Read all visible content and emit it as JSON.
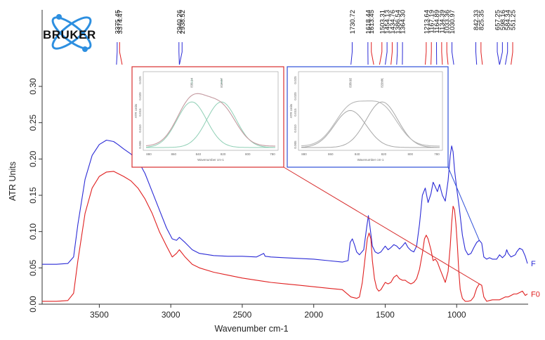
{
  "logo": {
    "text": "BRUKER"
  },
  "chart_data": {
    "type": "line",
    "xlabel": "Wavenumber cm-1",
    "ylabel": "ATR Units",
    "xlim": [
      3900,
      500
    ],
    "ylim": [
      0,
      0.33
    ],
    "x_reversed": true,
    "grid": false,
    "xticks": [
      3500,
      3000,
      2500,
      2000,
      1500,
      1000
    ],
    "yticks": [
      0.0,
      0.05,
      0.1,
      0.15,
      0.2,
      0.25,
      0.3
    ],
    "ytick_labels": [
      "0.00",
      "0.05",
      "0.10",
      "0.15",
      "0.20",
      "0.25",
      "0.30"
    ],
    "series": [
      {
        "name": "F",
        "color": "#2b2bd6",
        "x": [
          3900,
          3800,
          3720,
          3680,
          3650,
          3600,
          3550,
          3500,
          3450,
          3400,
          3370,
          3330,
          3280,
          3230,
          3180,
          3130,
          3080,
          3030,
          2990,
          2960,
          2940,
          2900,
          2850,
          2800,
          2700,
          2600,
          2500,
          2400,
          2350,
          2340,
          2300,
          2200,
          2100,
          2000,
          1900,
          1800,
          1760,
          1745,
          1730,
          1715,
          1700,
          1680,
          1650,
          1630,
          1618,
          1610,
          1590,
          1570,
          1550,
          1530,
          1500,
          1480,
          1460,
          1440,
          1420,
          1400,
          1380,
          1360,
          1340,
          1320,
          1300,
          1280,
          1260,
          1240,
          1220,
          1200,
          1180,
          1165,
          1150,
          1135,
          1120,
          1100,
          1080,
          1060,
          1045,
          1035,
          1025,
          1015,
          1000,
          980,
          960,
          940,
          920,
          900,
          880,
          860,
          842,
          825,
          810,
          790,
          770,
          750,
          720,
          700,
          680,
          660,
          650,
          640,
          620,
          600,
          590,
          580,
          560,
          540,
          520,
          505
        ],
        "y": [
          0.055,
          0.055,
          0.056,
          0.065,
          0.11,
          0.172,
          0.205,
          0.22,
          0.226,
          0.224,
          0.22,
          0.214,
          0.207,
          0.198,
          0.18,
          0.155,
          0.13,
          0.105,
          0.09,
          0.088,
          0.092,
          0.085,
          0.075,
          0.07,
          0.067,
          0.066,
          0.066,
          0.065,
          0.07,
          0.066,
          0.065,
          0.064,
          0.063,
          0.062,
          0.06,
          0.058,
          0.06,
          0.085,
          0.09,
          0.082,
          0.072,
          0.068,
          0.075,
          0.105,
          0.122,
          0.112,
          0.08,
          0.072,
          0.07,
          0.072,
          0.08,
          0.075,
          0.078,
          0.082,
          0.08,
          0.076,
          0.08,
          0.085,
          0.078,
          0.074,
          0.072,
          0.08,
          0.11,
          0.15,
          0.16,
          0.14,
          0.152,
          0.168,
          0.162,
          0.155,
          0.165,
          0.15,
          0.142,
          0.17,
          0.205,
          0.218,
          0.21,
          0.185,
          0.16,
          0.13,
          0.095,
          0.075,
          0.068,
          0.07,
          0.078,
          0.085,
          0.088,
          0.084,
          0.065,
          0.062,
          0.064,
          0.062,
          0.062,
          0.068,
          0.064,
          0.068,
          0.075,
          0.07,
          0.065,
          0.067,
          0.068,
          0.072,
          0.077,
          0.075,
          0.066,
          0.056
        ]
      },
      {
        "name": "F0",
        "color": "#e02020",
        "x": [
          3900,
          3800,
          3720,
          3680,
          3650,
          3600,
          3550,
          3500,
          3450,
          3400,
          3370,
          3330,
          3280,
          3230,
          3180,
          3130,
          3080,
          3030,
          2990,
          2960,
          2940,
          2900,
          2850,
          2800,
          2700,
          2600,
          2500,
          2400,
          2300,
          2200,
          2100,
          2000,
          1900,
          1800,
          1740,
          1700,
          1680,
          1660,
          1640,
          1625,
          1613,
          1600,
          1590,
          1575,
          1560,
          1545,
          1530,
          1515,
          1500,
          1480,
          1460,
          1440,
          1420,
          1400,
          1380,
          1360,
          1340,
          1320,
          1300,
          1280,
          1260,
          1240,
          1225,
          1213,
          1200,
          1180,
          1165,
          1150,
          1135,
          1120,
          1100,
          1080,
          1060,
          1045,
          1035,
          1025,
          1015,
          1005,
          995,
          985,
          975,
          960,
          940,
          920,
          900,
          880,
          860,
          842,
          825,
          810,
          790,
          770,
          750,
          720,
          700,
          680,
          660,
          640,
          620,
          600,
          580,
          560,
          540,
          520,
          505
        ],
        "y": [
          0.004,
          0.004,
          0.005,
          0.015,
          0.06,
          0.125,
          0.16,
          0.176,
          0.182,
          0.183,
          0.18,
          0.176,
          0.17,
          0.16,
          0.145,
          0.125,
          0.1,
          0.08,
          0.065,
          0.07,
          0.075,
          0.065,
          0.055,
          0.05,
          0.044,
          0.04,
          0.036,
          0.033,
          0.03,
          0.028,
          0.026,
          0.024,
          0.022,
          0.02,
          0.01,
          0.008,
          0.01,
          0.03,
          0.065,
          0.09,
          0.098,
          0.09,
          0.06,
          0.035,
          0.022,
          0.018,
          0.02,
          0.025,
          0.03,
          0.028,
          0.03,
          0.037,
          0.04,
          0.035,
          0.033,
          0.033,
          0.03,
          0.028,
          0.03,
          0.035,
          0.048,
          0.07,
          0.09,
          0.095,
          0.09,
          0.075,
          0.06,
          0.062,
          0.058,
          0.05,
          0.04,
          0.03,
          0.045,
          0.08,
          0.112,
          0.135,
          0.13,
          0.11,
          0.08,
          0.045,
          0.02,
          0.008,
          0.004,
          0.004,
          0.005,
          0.01,
          0.022,
          0.028,
          0.026,
          0.01,
          0.004,
          0.005,
          0.006,
          0.006,
          0.006,
          0.008,
          0.01,
          0.01,
          0.012,
          0.014,
          0.014,
          0.016,
          0.018,
          0.012,
          0.014
        ]
      }
    ],
    "series_end_labels": [
      "F",
      "F0"
    ],
    "peak_labels": [
      {
        "text": "3375.45",
        "x": 3375,
        "color": "#2b2bd6"
      },
      {
        "text": "3374.47",
        "x": 3358,
        "color": "#e02020"
      },
      {
        "text": "2940.26",
        "x": 2943,
        "color": "#2b2bd6"
      },
      {
        "text": "2938.52",
        "x": 2921,
        "color": "#2b2bd6"
      },
      {
        "text": "1730.72",
        "x": 1731,
        "color": "#2b2bd6"
      },
      {
        "text": "1618.44",
        "x": 1621,
        "color": "#2b2bd6"
      },
      {
        "text": "1613.45",
        "x": 1597,
        "color": "#e02020"
      },
      {
        "text": "1503.31",
        "x": 1523,
        "color": "#e02020"
      },
      {
        "text": "1454.13",
        "x": 1487,
        "color": "#2b2bd6"
      },
      {
        "text": "1434.76",
        "x": 1451,
        "color": "#e02020"
      },
      {
        "text": "1386.54",
        "x": 1415,
        "color": "#2b2bd6"
      },
      {
        "text": "1364.30",
        "x": 1379,
        "color": "#2b2bd6"
      },
      {
        "text": "1213.64",
        "x": 1213,
        "color": "#e02020"
      },
      {
        "text": "1167.19",
        "x": 1177,
        "color": "#e02020"
      },
      {
        "text": "1164.89",
        "x": 1141,
        "color": "#2b2bd6"
      },
      {
        "text": "1134.39",
        "x": 1105,
        "color": "#e02020"
      },
      {
        "text": "1033.36",
        "x": 1069,
        "color": "#e02020"
      },
      {
        "text": "1030.97",
        "x": 1033,
        "color": "#2b2bd6"
      },
      {
        "text": "842.33",
        "x": 866,
        "color": "#2b2bd6"
      },
      {
        "text": "825.35",
        "x": 830,
        "color": "#e02020"
      },
      {
        "text": "657.25",
        "x": 716,
        "color": "#2b2bd6"
      },
      {
        "text": "598.16",
        "x": 680,
        "color": "#2b2bd6"
      },
      {
        "text": "584.34",
        "x": 644,
        "color": "#2b2bd6"
      },
      {
        "text": "551.25",
        "x": 608,
        "color": "#e02020"
      }
    ],
    "insets": [
      {
        "border_color": "#d83030",
        "xlabel": "Wavenumber cm-1",
        "ylabel": "ATR Units",
        "xticks": [
          "880",
          "860",
          "840",
          "820",
          "800",
          "780"
        ],
        "yticks": [
          "0.005",
          "0.010",
          "0.015",
          "0.020",
          "0.025"
        ],
        "peak_labels": [
          "835.14",
          "818.07"
        ],
        "component_color": "#8fcfb5",
        "sum_color": "#c49aa0",
        "points_to": {
          "x": 842,
          "y": 0.028
        }
      },
      {
        "border_color": "#3050d8",
        "xlabel": "Wavenumber cm-1",
        "ylabel": "ATR Units",
        "xticks": [
          "880",
          "860",
          "840",
          "820",
          "800",
          "780"
        ],
        "yticks": [
          "0.005",
          "0.010",
          "0.015",
          "0.020",
          "0.025"
        ],
        "peak_labels": [
          "835.12",
          "822.01"
        ],
        "component_color": "#a8a8a8",
        "sum_color": "#b8b8b8",
        "points_to": {
          "x": 842,
          "y": 0.088
        }
      }
    ]
  }
}
